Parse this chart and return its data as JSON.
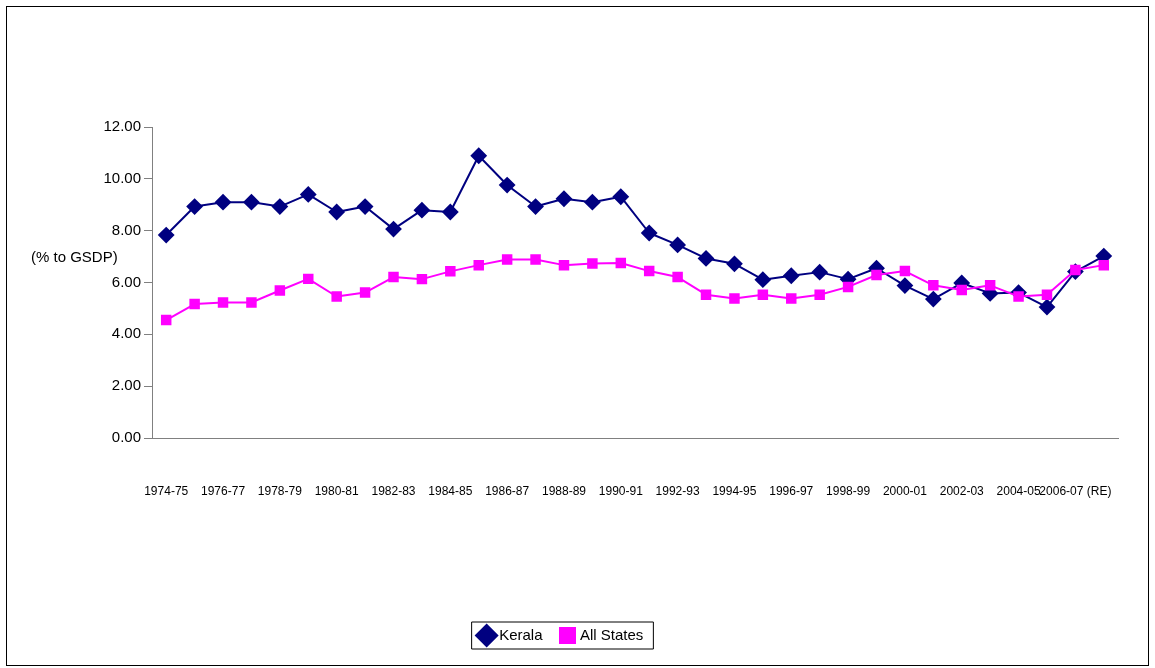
{
  "chart_data": {
    "type": "line",
    "ylabel": "(% to GSDP)",
    "categories": [
      "1974-75",
      null,
      "1976-77",
      null,
      "1978-79",
      null,
      "1980-81",
      null,
      "1982-83",
      null,
      "1984-85",
      null,
      "1986-87",
      null,
      "1988-89",
      null,
      "1990-91",
      null,
      "1992-93",
      null,
      "1994-95",
      null,
      "1996-97",
      null,
      "1998-99",
      null,
      "2000-01",
      null,
      "2002-03",
      null,
      "2004-05",
      null,
      "2006-07 (RE)",
      null
    ],
    "series": [
      {
        "name": "Kerala",
        "color": "#000080",
        "marker": "diamond",
        "values": [
          7.83,
          8.93,
          9.1,
          9.1,
          8.93,
          9.4,
          8.72,
          8.93,
          8.06,
          8.79,
          8.72,
          10.89,
          9.76,
          8.93,
          9.23,
          9.1,
          9.31,
          7.91,
          7.45,
          6.93,
          6.72,
          6.11,
          6.26,
          6.4,
          6.13,
          6.55,
          5.88,
          5.36,
          5.98,
          5.58,
          5.61,
          5.05,
          6.42,
          7.02
        ]
      },
      {
        "name": "All States",
        "color": "#ff00ff",
        "marker": "square",
        "values": [
          4.55,
          5.17,
          5.23,
          5.23,
          5.69,
          6.14,
          5.46,
          5.61,
          6.21,
          6.13,
          6.43,
          6.67,
          6.89,
          6.89,
          6.67,
          6.73,
          6.75,
          6.44,
          6.21,
          5.53,
          5.38,
          5.53,
          5.38,
          5.53,
          5.83,
          6.29,
          6.44,
          5.89,
          5.71,
          5.89,
          5.46,
          5.53,
          6.48,
          6.67
        ]
      }
    ],
    "ylim": [
      0,
      12
    ],
    "yticks": [
      {
        "value": 0,
        "label": "0.00"
      },
      {
        "value": 2,
        "label": "2.00"
      },
      {
        "value": 4,
        "label": "4.00"
      },
      {
        "value": 6,
        "label": "6.00"
      },
      {
        "value": 8,
        "label": "8.00"
      },
      {
        "value": 10,
        "label": "10.00"
      },
      {
        "value": 12,
        "label": "12.00"
      }
    ],
    "grid": false,
    "legend": "bottom",
    "line_style": "solid"
  }
}
